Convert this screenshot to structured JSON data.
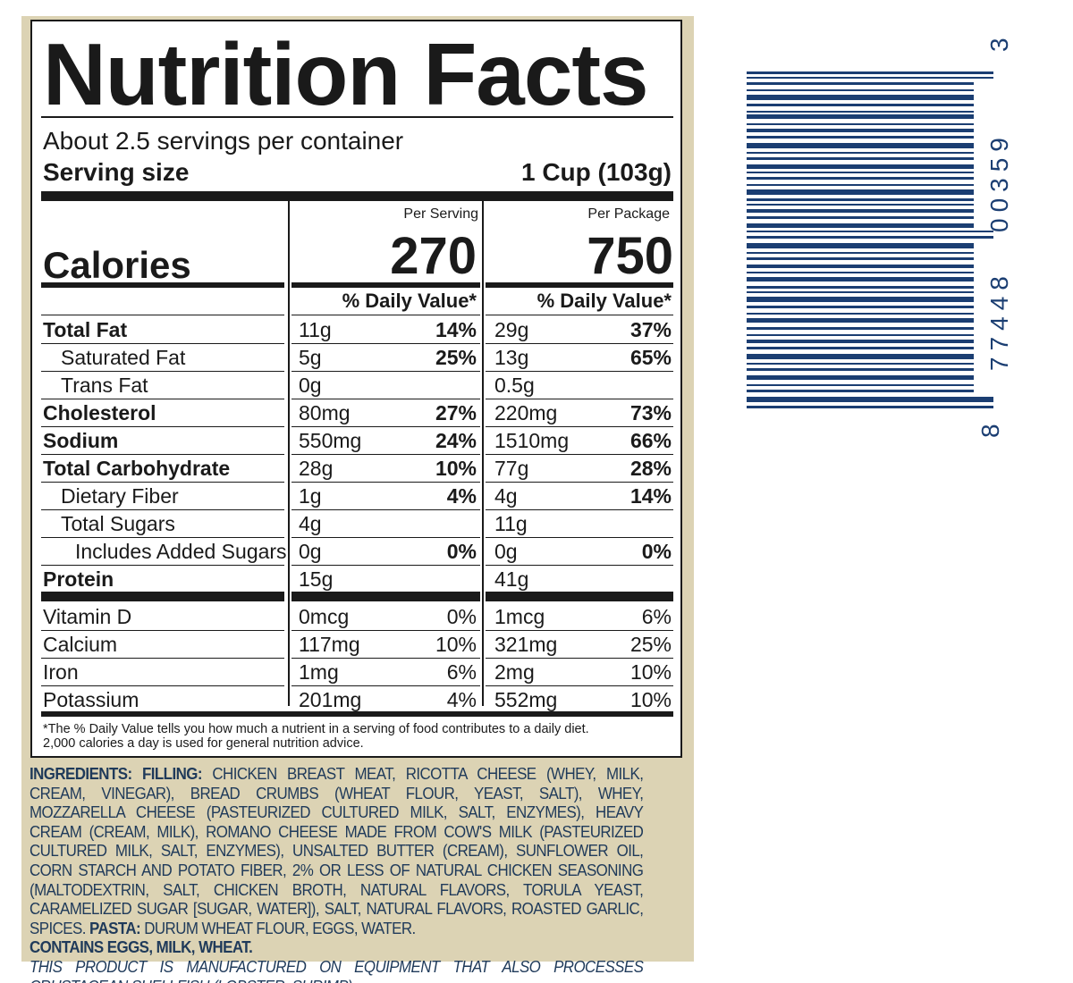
{
  "label": {
    "title": "Nutrition Facts",
    "servings_per_container": "About 2.5 servings per container",
    "serving_size_label": "Serving size",
    "serving_size_value": "1 Cup (103g)",
    "col1_header": "Per Serving",
    "col2_header": "Per Package",
    "calories_label": "Calories",
    "calories_serving": "270",
    "calories_package": "750",
    "dv_header": "% Daily Value*",
    "nutrients": [
      {
        "name": "Total Fat",
        "a1": "11g",
        "p1": "14%",
        "a2": "29g",
        "p2": "37%"
      },
      {
        "name": "Saturated Fat",
        "a1": "5g",
        "p1": "25%",
        "a2": "13g",
        "p2": "65%"
      },
      {
        "name": "Trans Fat",
        "a1": "0g",
        "p1": "",
        "a2": "0.5g",
        "p2": ""
      },
      {
        "name": "Cholesterol",
        "a1": "80mg",
        "p1": "27%",
        "a2": "220mg",
        "p2": "73%"
      },
      {
        "name": "Sodium",
        "a1": "550mg",
        "p1": "24%",
        "a2": "1510mg",
        "p2": "66%"
      },
      {
        "name": "Total Carbohydrate",
        "a1": "28g",
        "p1": "10%",
        "a2": "77g",
        "p2": "28%"
      },
      {
        "name": "Dietary Fiber",
        "a1": "1g",
        "p1": "4%",
        "a2": "4g",
        "p2": "14%"
      },
      {
        "name": "Total Sugars",
        "a1": "4g",
        "p1": "",
        "a2": "11g",
        "p2": ""
      },
      {
        "name": "Includes Added Sugars",
        "a1": "0g",
        "p1": "0%",
        "a2": "0g",
        "p2": "0%"
      },
      {
        "name": "Protein",
        "a1": "15g",
        "p1": "",
        "a2": "41g",
        "p2": ""
      }
    ],
    "vitamins": [
      {
        "name": "Vitamin D",
        "a1": "0mcg",
        "p1": "0%",
        "a2": "1mcg",
        "p2": "6%"
      },
      {
        "name": "Calcium",
        "a1": "117mg",
        "p1": "10%",
        "a2": "321mg",
        "p2": "25%"
      },
      {
        "name": "Iron",
        "a1": "1mg",
        "p1": "6%",
        "a2": "2mg",
        "p2": "10%"
      },
      {
        "name": "Potassium",
        "a1": "201mg",
        "p1": "4%",
        "a2": "552mg",
        "p2": "10%"
      }
    ],
    "footnote_line1": "*The % Daily Value tells you how much a nutrient in a serving of food contributes to a daily diet.",
    "footnote_line2": "2,000 calories a day is used for general nutrition advice."
  },
  "ingredients": {
    "heading": "INGREDIENTS:",
    "filling_label": "FILLING:",
    "filling_text": "CHICKEN BREAST MEAT, RICOTTA CHEESE (WHEY, MILK, CREAM, VINEGAR), BREAD CRUMBS (WHEAT FLOUR, YEAST, SALT), WHEY, MOZZARELLA CHEESE (PASTEURIZED CULTURED MILK, SALT, ENZYMES), HEAVY CREAM (CREAM, MILK), ROMANO CHEESE MADE FROM COW'S MILK (PASTEURIZED CULTURED MILK, SALT, ENZYMES), UNSALTED BUTTER (CREAM), SUNFLOWER OIL, CORN STARCH AND POTATO FIBER, 2% OR LESS OF NATURAL CHICKEN SEASONING (MALTODEXTRIN, SALT, CHICKEN BROTH, NATURAL FLAVORS, TORULA YEAST, CARAMELIZED SUGAR [SUGAR, WATER]), SALT, NATURAL FLAVORS, ROASTED GARLIC, SPICES.",
    "pasta_label": "PASTA:",
    "pasta_text": "DURUM WHEAT FLOUR, EGGS, WATER.",
    "contains": "CONTAINS EGGS, MILK, WHEAT.",
    "warning": "THIS PRODUCT IS MANUFACTURED ON EQUIPMENT THAT ALSO PROCESSES CRUSTACEAN SHELLFISH (LOBSTER, SHRIMP)."
  },
  "barcode": {
    "first_digit": "8",
    "group1": "77448",
    "group2": "00359",
    "last_digit": "3",
    "color": "#1b3e72"
  },
  "colors": {
    "panel_bg": "#dcd3b4",
    "ingredient_text": "#1f3a5a"
  }
}
